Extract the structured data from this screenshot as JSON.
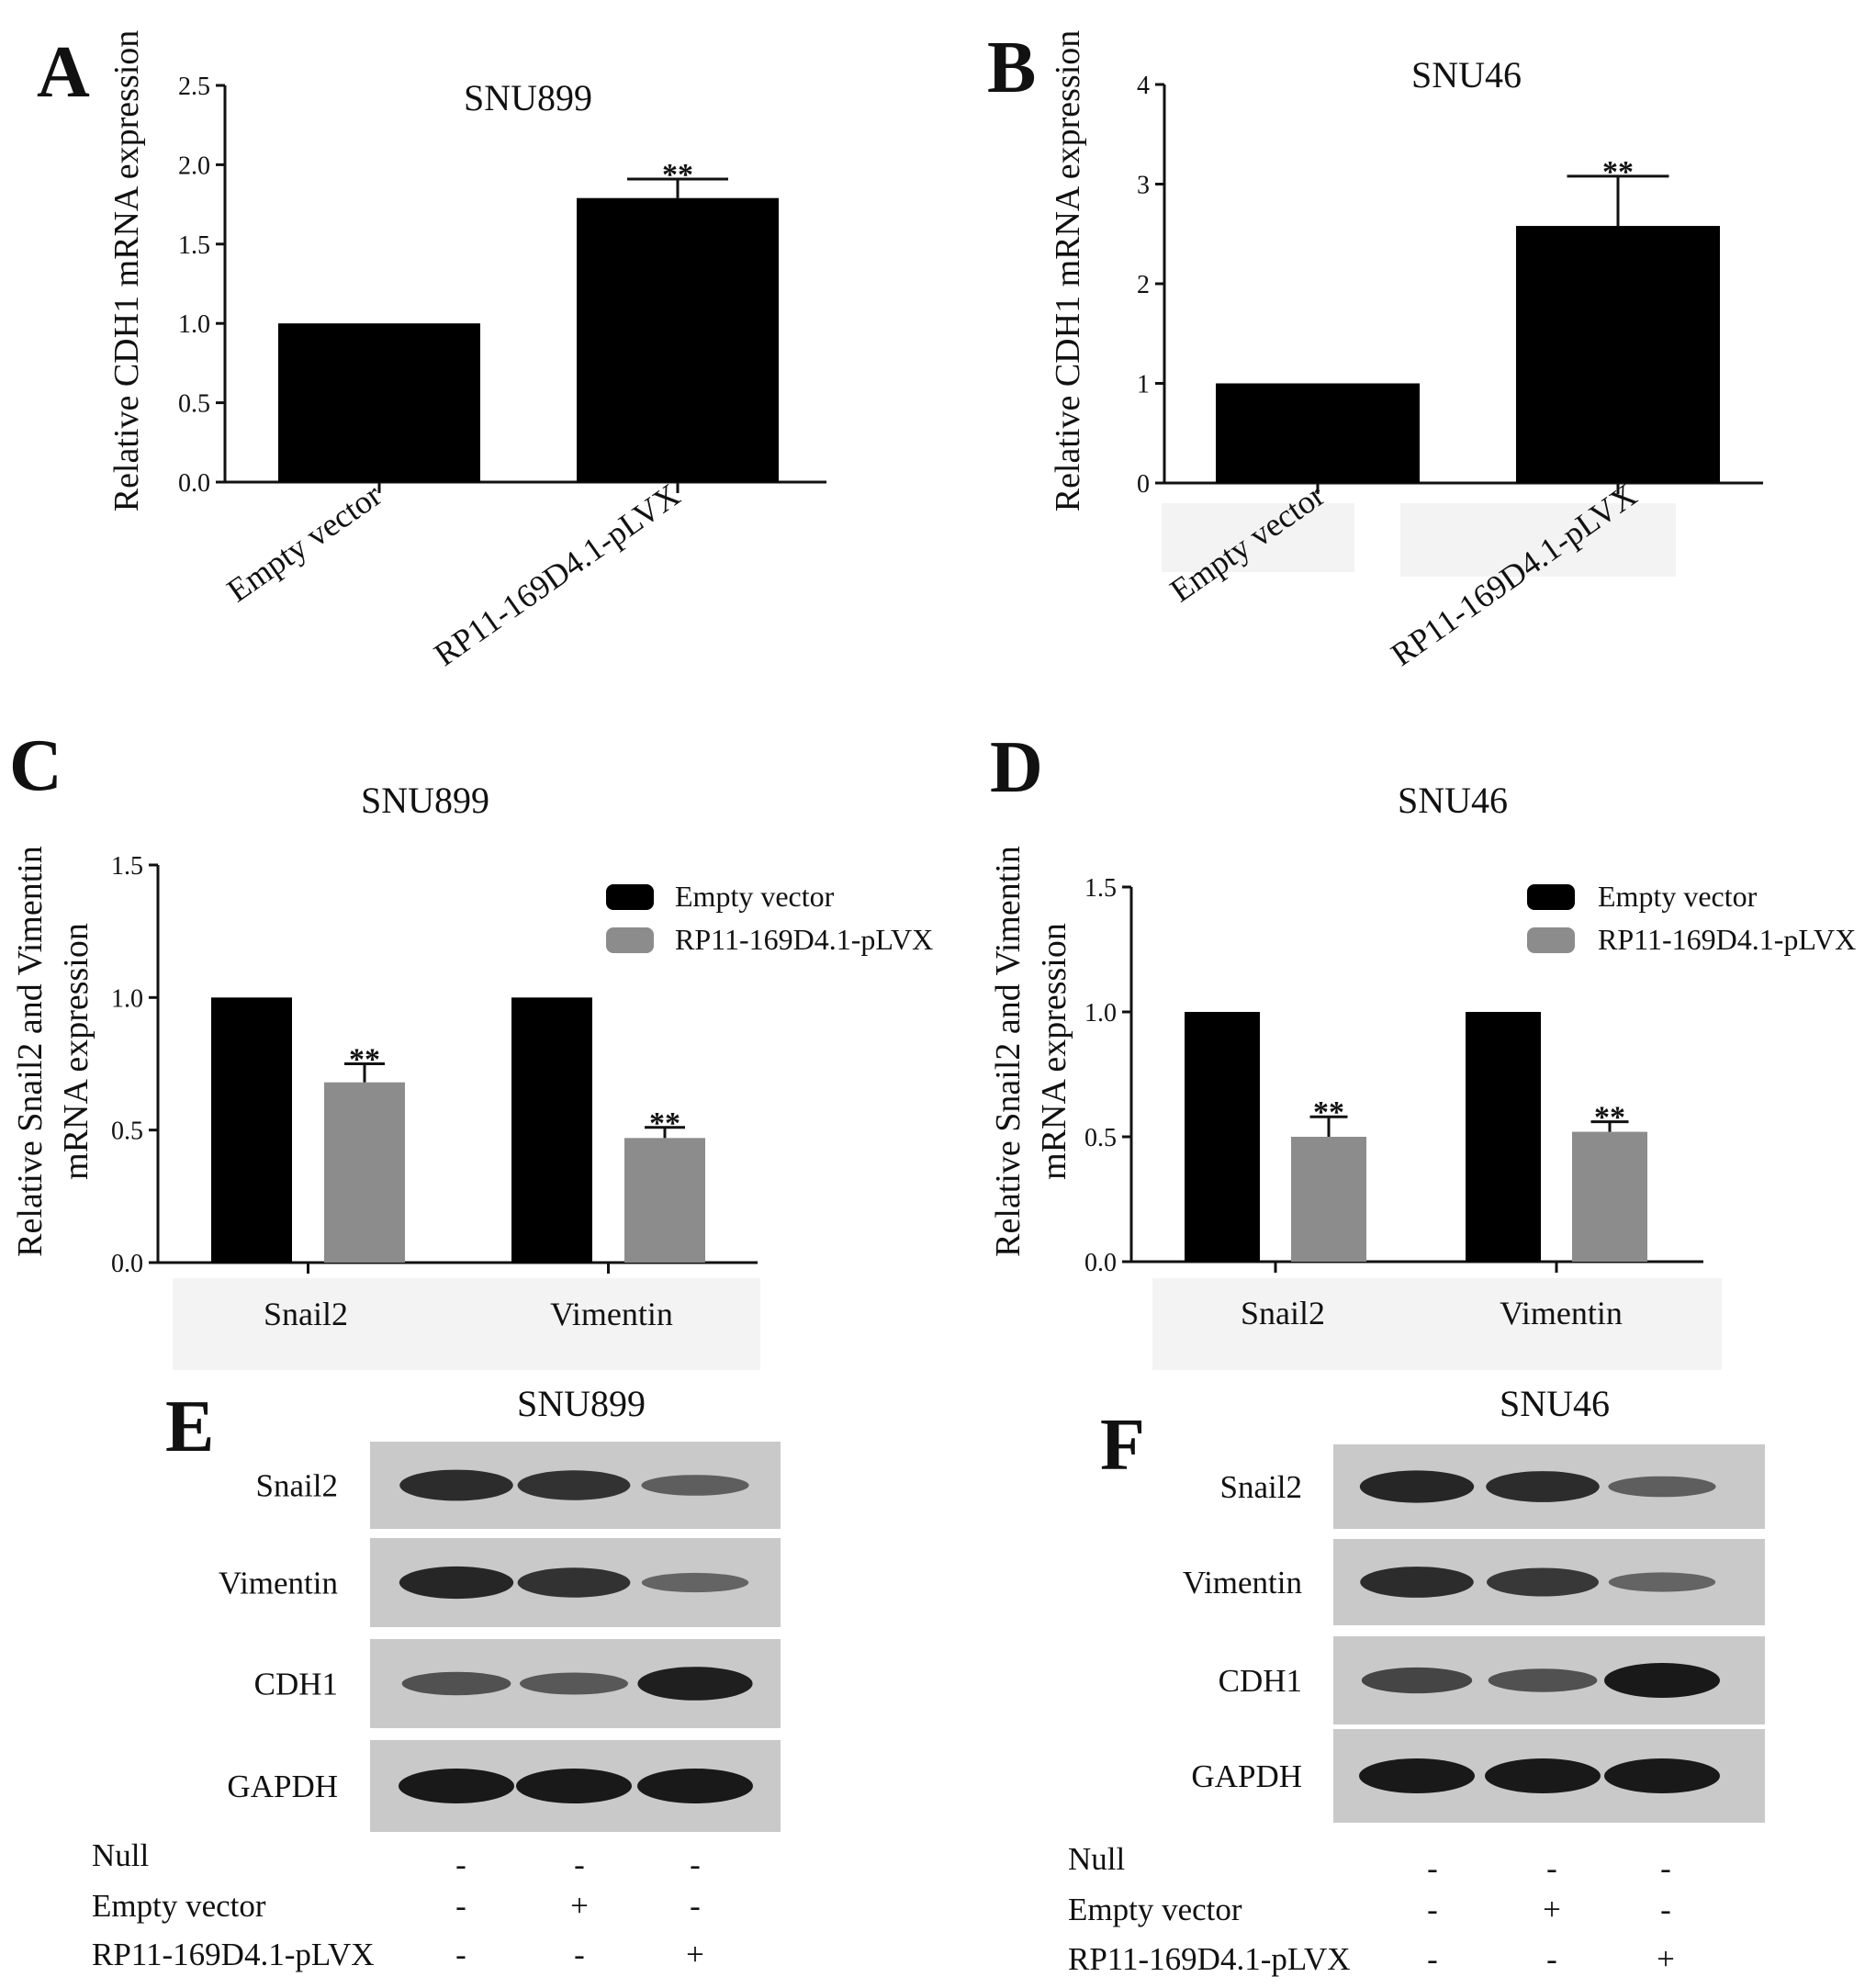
{
  "chart_data": [
    {
      "panel": "A",
      "type": "bar",
      "title": "SNU899",
      "ylabel": "Relative CDH1 mRNA expression",
      "categories": [
        "Empty vector",
        "RP11-169D4.1-pLVX"
      ],
      "values": [
        1.0,
        1.79
      ],
      "errors": [
        0,
        0.12
      ],
      "significance": [
        "",
        "**"
      ],
      "ylim": [
        0,
        2.5
      ],
      "yticks": [
        "0.0",
        "0.5",
        "1.0",
        "1.5",
        "2.0",
        "2.5"
      ],
      "bar_color": "#000000",
      "grid": false
    },
    {
      "panel": "B",
      "type": "bar",
      "title": "SNU46",
      "ylabel": "Relative CDH1 mRNA expression",
      "categories": [
        "Empty vector",
        "RP11-169D4.1-pLVX"
      ],
      "values": [
        1.0,
        2.58
      ],
      "errors": [
        0,
        0.5
      ],
      "significance": [
        "",
        "**"
      ],
      "ylim": [
        0,
        4
      ],
      "yticks": [
        "0",
        "1",
        "2",
        "3",
        "4"
      ],
      "bar_color": "#000000",
      "grid": false
    },
    {
      "panel": "C",
      "type": "bar",
      "title": "SNU899",
      "ylabel": [
        "Relative Snail2 and Vimentin",
        "mRNA expression"
      ],
      "categories": [
        "Snail2",
        "Vimentin"
      ],
      "series": [
        {
          "name": "Empty vector",
          "values": [
            1.0,
            1.0
          ],
          "errors": [
            0,
            0
          ],
          "significance": [
            "",
            ""
          ],
          "color": "#000000"
        },
        {
          "name": "RP11-169D4.1-pLVX",
          "values": [
            0.68,
            0.47
          ],
          "errors": [
            0.07,
            0.04
          ],
          "significance": [
            "**",
            "**"
          ],
          "color": "#8c8c8c"
        }
      ],
      "ylim": [
        0,
        1.5
      ],
      "yticks": [
        "0.0",
        "0.5",
        "1.0",
        "1.5"
      ],
      "legend_position": "top-right",
      "grid": false
    },
    {
      "panel": "D",
      "type": "bar",
      "title": "SNU46",
      "ylabel": [
        "Relative Snail2 and Vimentin",
        "mRNA expression"
      ],
      "categories": [
        "Snail2",
        "Vimentin"
      ],
      "series": [
        {
          "name": "Empty vector",
          "values": [
            1.0,
            1.0
          ],
          "errors": [
            0,
            0
          ],
          "significance": [
            "",
            ""
          ],
          "color": "#000000"
        },
        {
          "name": "RP11-169D4.1-pLVX",
          "values": [
            0.5,
            0.52
          ],
          "errors": [
            0.08,
            0.04
          ],
          "significance": [
            "**",
            "**"
          ],
          "color": "#8c8c8c"
        }
      ],
      "ylim": [
        0,
        1.5
      ],
      "yticks": [
        "0.0",
        "0.5",
        "1.0",
        "1.5"
      ],
      "legend_position": "top-right",
      "grid": false
    }
  ],
  "blots": [
    {
      "panel": "E",
      "title": "SNU899",
      "proteins": [
        {
          "name": "Snail2",
          "intensity": [
            0.85,
            0.8,
            0.45
          ]
        },
        {
          "name": "Vimentin",
          "intensity": [
            0.9,
            0.8,
            0.4
          ]
        },
        {
          "name": "CDH1",
          "intensity": [
            0.55,
            0.5,
            0.95
          ]
        },
        {
          "name": "GAPDH",
          "intensity": [
            1.0,
            1.0,
            1.0
          ]
        }
      ],
      "conditions": [
        {
          "label": "Null",
          "marks": [
            "-",
            "-",
            "-"
          ]
        },
        {
          "label": "Empty vector",
          "marks": [
            "-",
            "+",
            "-"
          ]
        },
        {
          "label": "RP11-169D4.1-pLVX",
          "marks": [
            "-",
            "-",
            "+"
          ]
        }
      ]
    },
    {
      "panel": "F",
      "title": "SNU46",
      "proteins": [
        {
          "name": "Snail2",
          "intensity": [
            0.9,
            0.85,
            0.45
          ]
        },
        {
          "name": "Vimentin",
          "intensity": [
            0.85,
            0.75,
            0.4
          ]
        },
        {
          "name": "CDH1",
          "intensity": [
            0.65,
            0.55,
            1.0
          ]
        },
        {
          "name": "GAPDH",
          "intensity": [
            1.0,
            1.0,
            1.0
          ]
        }
      ],
      "conditions": [
        {
          "label": "Null",
          "marks": [
            "-",
            "-",
            "-"
          ]
        },
        {
          "label": "Empty vector",
          "marks": [
            "-",
            "+",
            "-"
          ]
        },
        {
          "label": "RP11-169D4.1-pLVX",
          "marks": [
            "-",
            "-",
            "+"
          ]
        }
      ]
    }
  ]
}
